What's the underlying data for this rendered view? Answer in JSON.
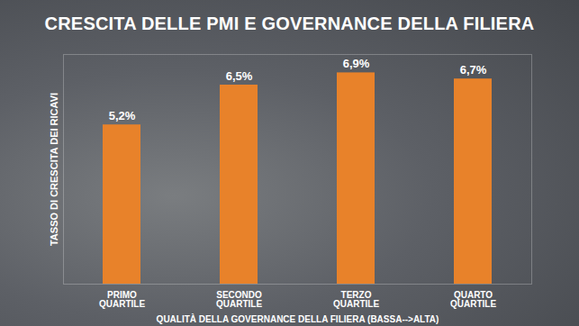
{
  "chart_data": {
    "type": "bar",
    "title": "CRESCITA DELLE PMI E GOVERNANCE DELLA FILIERA",
    "x_label": "QUALITÀ DELLA GOVERNANCE DELLA FILIERA (BASSA-->ALTA)",
    "y_label": "TASSO DI CRESCITA DEI RICAVI",
    "categories": [
      "PRIMO QUARTILE",
      "SECONDO QUARTILE",
      "TERZO QUARTILE",
      "QUARTO QUARTILE"
    ],
    "values": [
      5.2,
      6.5,
      6.9,
      6.7
    ],
    "value_labels": [
      "5,2%",
      "6,5%",
      "6,9%",
      "6,7%"
    ],
    "color": "#e8822a",
    "ylim": [
      0,
      7.5
    ],
    "yticks": [],
    "grid": false,
    "data_labels": true,
    "tick_labels": "x"
  }
}
